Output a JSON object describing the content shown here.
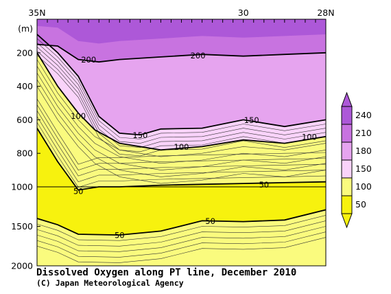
{
  "chart_data": {
    "type": "contour",
    "title": "Dissolved Oxygen along PT line, December 2010",
    "credit": "(C) Japan Meteorological Agency",
    "x_axis": {
      "labels": [
        {
          "value": 35,
          "text": "35N"
        },
        {
          "value": 30,
          "text": "30"
        },
        {
          "value": 28,
          "text": "28N"
        }
      ],
      "range": [
        35,
        28
      ],
      "position": "top"
    },
    "y_axis": {
      "unit_label": "(m)",
      "ticks": [
        200,
        400,
        600,
        800,
        1000,
        1500,
        2000
      ],
      "range": [
        0,
        2000
      ],
      "scale_break_at": 1000,
      "inverted": true
    },
    "contour_levels": [
      50,
      100,
      150,
      200
    ],
    "contour_labels": [
      {
        "text": "200",
        "x": 33.75,
        "depth": 240
      },
      {
        "text": "200",
        "x": 31.1,
        "depth": 215
      },
      {
        "text": "150",
        "x": 32.5,
        "depth": 690
      },
      {
        "text": "150",
        "x": 29.8,
        "depth": 600
      },
      {
        "text": "100",
        "x": 34.0,
        "depth": 575
      },
      {
        "text": "100",
        "x": 31.5,
        "depth": 760
      },
      {
        "text": "100",
        "x": 28.4,
        "depth": 700
      },
      {
        "text": "50",
        "x": 29.5,
        "depth": 985
      },
      {
        "text": "50",
        "x": 34.0,
        "depth": 1050
      },
      {
        "text": "50",
        "x": 30.8,
        "depth": 1430
      },
      {
        "text": "50",
        "x": 33.0,
        "depth": 1610
      }
    ],
    "colorbar": {
      "levels": [
        "50",
        "100",
        "150",
        "180",
        "210",
        "240"
      ],
      "colors": [
        "#f7f20e",
        "#fafb7e",
        "#f9d3fa",
        "#e6a4ef",
        "#c873e0",
        "#ad58d8"
      ]
    },
    "fields": [
      {
        "name": "upper_purple_200",
        "depth_profile": [
          [
            35,
            150
          ],
          [
            34.5,
            160
          ],
          [
            34,
            240
          ],
          [
            33.5,
            255
          ],
          [
            33,
            240
          ],
          [
            32,
            225
          ],
          [
            31,
            210
          ],
          [
            30,
            220
          ],
          [
            29,
            210
          ],
          [
            28,
            200
          ]
        ]
      },
      {
        "name": "contour_150",
        "depth_profile": [
          [
            35,
            90
          ],
          [
            34.5,
            200
          ],
          [
            34,
            340
          ],
          [
            33.5,
            580
          ],
          [
            33,
            680
          ],
          [
            32.5,
            690
          ],
          [
            32,
            655
          ],
          [
            31,
            650
          ],
          [
            30,
            600
          ],
          [
            29,
            640
          ],
          [
            28,
            600
          ]
        ]
      },
      {
        "name": "contour_100",
        "depth_profile": [
          [
            35,
            200
          ],
          [
            34.5,
            400
          ],
          [
            34,
            560
          ],
          [
            33.6,
            660
          ],
          [
            33,
            740
          ],
          [
            32,
            780
          ],
          [
            31,
            760
          ],
          [
            30,
            720
          ],
          [
            29,
            740
          ],
          [
            28,
            700
          ]
        ]
      },
      {
        "name": "contour_50_upper",
        "depth_profile": [
          [
            35,
            650
          ],
          [
            34.5,
            850
          ],
          [
            34,
            1040
          ],
          [
            33.5,
            1000
          ],
          [
            33,
            1000
          ],
          [
            32,
            990
          ],
          [
            31,
            985
          ],
          [
            30,
            980
          ],
          [
            29,
            975
          ],
          [
            28,
            970
          ]
        ]
      },
      {
        "name": "contour_50_lower",
        "depth_profile": [
          [
            35,
            1400
          ],
          [
            34.5,
            1480
          ],
          [
            34,
            1600
          ],
          [
            33,
            1610
          ],
          [
            32,
            1560
          ],
          [
            31,
            1430
          ],
          [
            30,
            1440
          ],
          [
            29,
            1420
          ],
          [
            28,
            1290
          ]
        ]
      }
    ]
  }
}
